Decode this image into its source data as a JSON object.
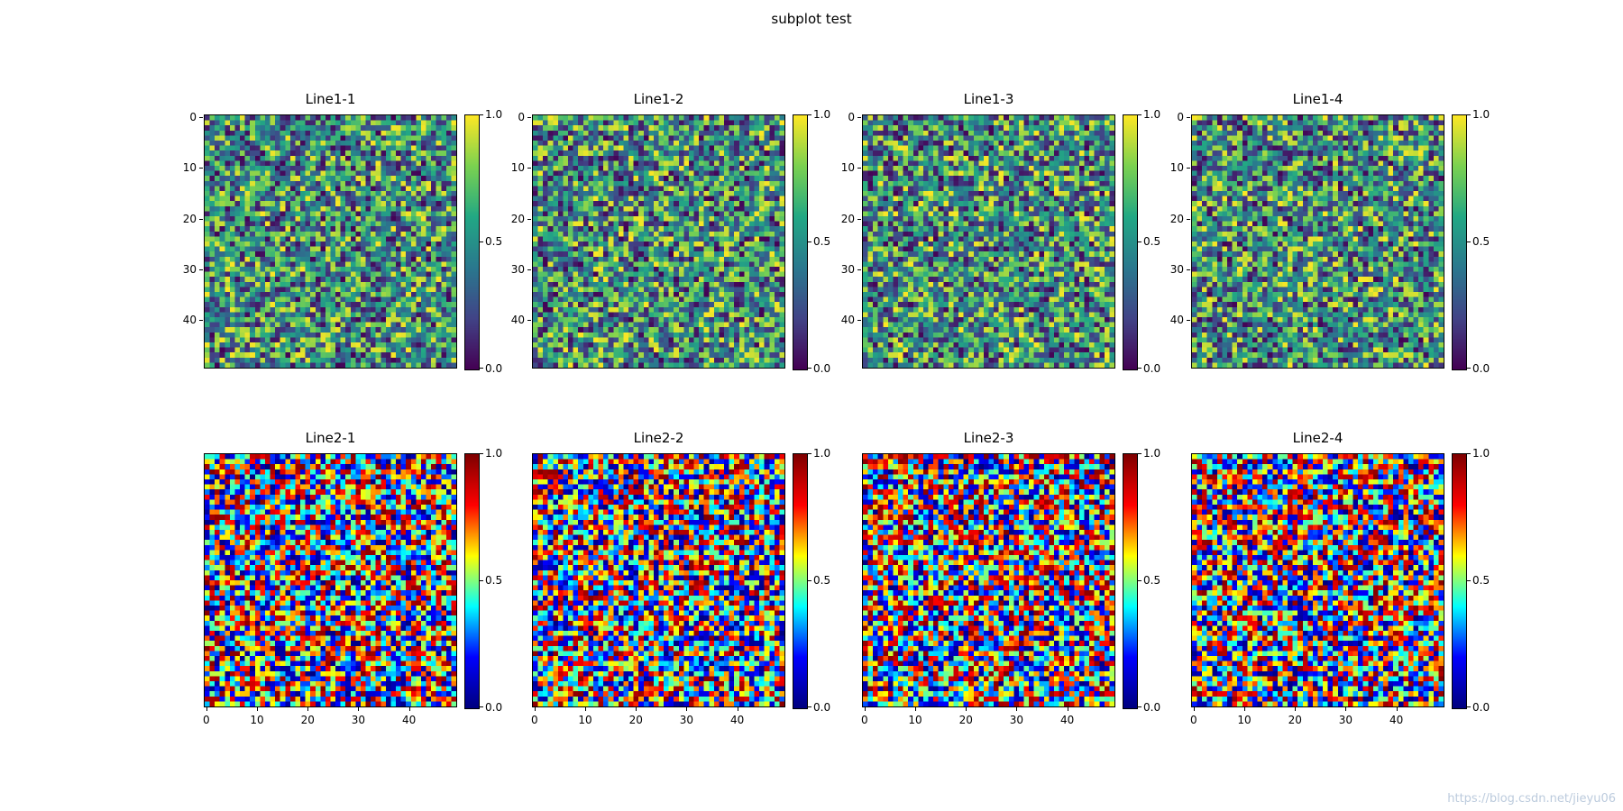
{
  "figure": {
    "title": "subplot test",
    "watermark": "https://blog.csdn.net/jieyu06"
  },
  "chart_data": {
    "type": "heatmap",
    "title": "subplot test",
    "description": "2x4 grid of 50x50 heatmaps of uniform random values in [0,1]; top row uses viridis colormap, bottom row uses jet colormap; each subplot has its own vertical colorbar with ticks at 0.0, 0.5, 1.0",
    "grid_rows": 2,
    "grid_cols": 4,
    "cell_grid": [
      50,
      50
    ],
    "value_range": [
      0,
      1
    ],
    "distribution": "uniform random [0,1]",
    "x_ticks": [
      0,
      10,
      20,
      30,
      40
    ],
    "y_ticks": [
      0,
      10,
      20,
      30,
      40
    ],
    "colorbar_tick_labels": [
      "1.0",
      "0.5",
      "0.0"
    ],
    "colorbar_tick_positions": [
      0,
      0.5,
      1
    ],
    "colormaps": {
      "viridis": [
        "#440154",
        "#414487",
        "#2a788e",
        "#22a884",
        "#7ad151",
        "#fde725"
      ],
      "jet": [
        "#00007f",
        "#0000ff",
        "#00ffff",
        "#ffff00",
        "#ff0000",
        "#7f0000"
      ]
    },
    "subplots": [
      {
        "title": "Line1-1",
        "row": 1,
        "col": 1,
        "colormap": "viridis",
        "seed": 101,
        "show_y_ticks": true,
        "show_x_ticks": false
      },
      {
        "title": "Line1-2",
        "row": 1,
        "col": 2,
        "colormap": "viridis",
        "seed": 102,
        "show_y_ticks": true,
        "show_x_ticks": false
      },
      {
        "title": "Line1-3",
        "row": 1,
        "col": 3,
        "colormap": "viridis",
        "seed": 103,
        "show_y_ticks": true,
        "show_x_ticks": false
      },
      {
        "title": "Line1-4",
        "row": 1,
        "col": 4,
        "colormap": "viridis",
        "seed": 104,
        "show_y_ticks": true,
        "show_x_ticks": false
      },
      {
        "title": "Line2-1",
        "row": 2,
        "col": 1,
        "colormap": "jet",
        "seed": 201,
        "show_y_ticks": false,
        "show_x_ticks": true
      },
      {
        "title": "Line2-2",
        "row": 2,
        "col": 2,
        "colormap": "jet",
        "seed": 202,
        "show_y_ticks": false,
        "show_x_ticks": true
      },
      {
        "title": "Line2-3",
        "row": 2,
        "col": 3,
        "colormap": "jet",
        "seed": 203,
        "show_y_ticks": false,
        "show_x_ticks": true
      },
      {
        "title": "Line2-4",
        "row": 2,
        "col": 4,
        "colormap": "jet",
        "seed": 204,
        "show_y_ticks": false,
        "show_x_ticks": true
      }
    ]
  }
}
